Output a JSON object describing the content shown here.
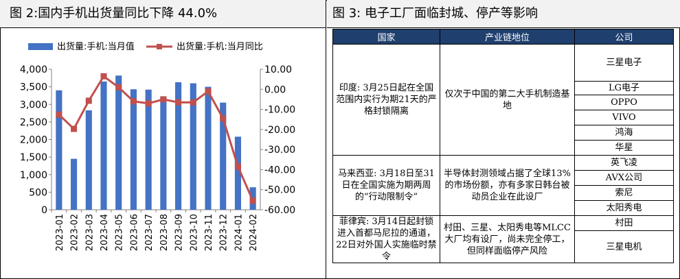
{
  "figure2": {
    "title": "图 2:国内手机出货量同比下降 44.0%",
    "chart_data": {
      "type": "bar+line",
      "categories": [
        "2023-01",
        "2023-02",
        "2023-03",
        "2023-04",
        "2023-05",
        "2023-06",
        "2023-07",
        "2023-08",
        "2023-09",
        "2023-10",
        "2023-11",
        "2023-12",
        "2024-01",
        "2024-02"
      ],
      "series": [
        {
          "name": "出货量:手机:当月值",
          "type": "bar",
          "axis": "left",
          "color": "#4472c4",
          "values": [
            3400,
            1450,
            2830,
            3650,
            3820,
            3430,
            3420,
            3230,
            3630,
            3600,
            3500,
            3050,
            2080,
            640
          ]
        },
        {
          "name": "出货量:手机:当月同比",
          "type": "line",
          "axis": "right",
          "color": "#c0504d",
          "values": [
            -12.6,
            -19.7,
            -5.7,
            6.5,
            1.0,
            -6.0,
            -7.0,
            -5.0,
            -6.5,
            -6.5,
            -1.0,
            -14.5,
            -38.5,
            -55.5
          ]
        }
      ],
      "y_left": {
        "min": 0,
        "max": 4000,
        "step": 500,
        "tick_labels": [
          "0",
          "500",
          "1,000",
          "1,500",
          "2,000",
          "2,500",
          "3,000",
          "3,500",
          "4,000"
        ]
      },
      "y_right": {
        "min": -60,
        "max": 10,
        "step": 10,
        "tick_labels": [
          "-60.00",
          "-50.00",
          "-40.00",
          "-30.00",
          "-20.00",
          "-10.00",
          "0.00",
          "10.00"
        ]
      },
      "legend_position": "top",
      "grid": false
    }
  },
  "figure3": {
    "title": "图 3: 电子工厂面临封城、停产等影响",
    "headers": [
      "国家",
      "产业链地位",
      "公司"
    ],
    "groups": [
      {
        "country": "印度: 3月25日起在全国范围内实行为期21天的严格封锁隔离",
        "position": "仅次于中国的第二大手机制造基地",
        "companies": [
          "三星电子",
          "LG电子",
          "OPPO",
          "VIVO",
          "鸿海",
          "华星"
        ]
      },
      {
        "country": "马来西亚: 3月18日至31日在全国实施为期两周的“行动限制令”",
        "position": "半导体封测领域占据了全球13%的市场份额，亦有多家日韩台被动员企业在此设厂",
        "companies": [
          "英飞凌",
          "AVX公司",
          "索尼",
          "太阳秀电"
        ]
      },
      {
        "country": "菲律宾: 3月14日起封锁进入首都马尼拉的通道，22日对外国人实施临时禁令",
        "position": "村田、三星、太阳秀电等MLCC大厂均有设厂，尚未完全停工，但同样面临停产风险",
        "companies": [
          "村田",
          "三星电机"
        ]
      }
    ]
  }
}
